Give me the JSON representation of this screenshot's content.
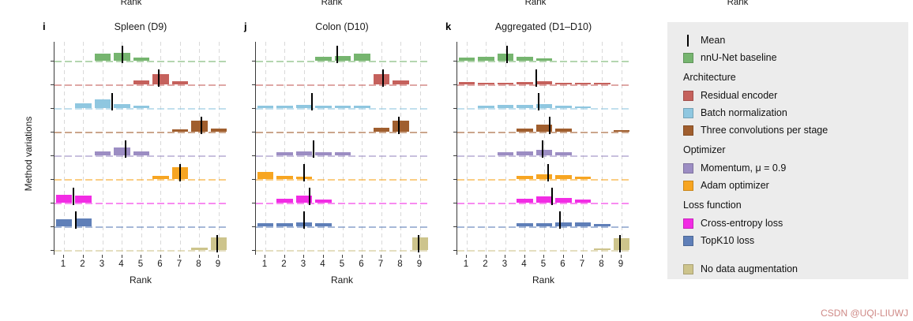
{
  "page": {
    "top_axis_labels": [
      "Rank",
      "Rank",
      "Rank",
      "Rank"
    ],
    "y_axis_label": "Method variations",
    "watermark": "CSDN @UQI-LIUWJ"
  },
  "colors": {
    "baseline": "#76b56f",
    "residual": "#c5615c",
    "batchnorm": "#8fc7e0",
    "threeconv": "#a05e2e",
    "momentum": "#9c8dc3",
    "adam": "#f7a521",
    "crossentropy": "#f22ce4",
    "topk10": "#5f7fb8",
    "noaug": "#cdc48c",
    "mean": "#000000",
    "grid": "#d9d9d9",
    "axis": "#3a3a3a",
    "legend_bg": "#ececec",
    "watermark": "#cf8a87"
  },
  "chart_data": [
    {
      "id": "i",
      "type": "rank-histogram",
      "title": "Spleen (D9)",
      "xlabel": "Rank",
      "x_ticks": [
        1,
        2,
        3,
        4,
        5,
        6,
        7,
        8,
        9
      ],
      "rows": [
        {
          "name": "nnU-Net baseline",
          "color_key": "baseline",
          "mean": 4.0,
          "bars": [
            [
              3,
              0.5
            ],
            [
              4,
              0.55
            ],
            [
              5,
              0.25
            ]
          ]
        },
        {
          "name": "Residual encoder",
          "color_key": "residual",
          "mean": 5.9,
          "bars": [
            [
              5,
              0.3
            ],
            [
              6,
              0.75
            ],
            [
              7,
              0.25
            ]
          ]
        },
        {
          "name": "Batch normalization",
          "color_key": "batchnorm",
          "mean": 3.5,
          "bars": [
            [
              2,
              0.35
            ],
            [
              3,
              0.6
            ],
            [
              4,
              0.3
            ],
            [
              5,
              0.15
            ]
          ]
        },
        {
          "name": "Three convolutions per stage",
          "color_key": "threeconv",
          "mean": 8.1,
          "bars": [
            [
              7,
              0.15
            ],
            [
              8,
              0.8
            ],
            [
              9,
              0.25
            ]
          ]
        },
        {
          "name": "Momentum, μ = 0.9",
          "color_key": "momentum",
          "mean": 4.2,
          "bars": [
            [
              3,
              0.3
            ],
            [
              4,
              0.55
            ],
            [
              5,
              0.3
            ]
          ]
        },
        {
          "name": "Adam optimizer",
          "color_key": "adam",
          "mean": 7.0,
          "bars": [
            [
              6,
              0.2
            ],
            [
              7,
              0.85
            ]
          ]
        },
        {
          "name": "Cross-entropy loss",
          "color_key": "crossentropy",
          "mean": 1.5,
          "bars": [
            [
              1,
              0.55
            ],
            [
              2,
              0.5
            ]
          ]
        },
        {
          "name": "TopK10 loss",
          "color_key": "topk10",
          "mean": 1.6,
          "bars": [
            [
              1,
              0.5
            ],
            [
              2,
              0.55
            ]
          ]
        },
        {
          "name": "No data augmentation",
          "color_key": "noaug",
          "mean": 8.9,
          "bars": [
            [
              8,
              0.15
            ],
            [
              9,
              0.9
            ]
          ]
        }
      ]
    },
    {
      "id": "j",
      "type": "rank-histogram",
      "title": "Colon (D10)",
      "xlabel": "Rank",
      "x_ticks": [
        1,
        2,
        3,
        4,
        5,
        6,
        7,
        8,
        9
      ],
      "rows": [
        {
          "name": "nnU-Net baseline",
          "color_key": "baseline",
          "mean": 4.7,
          "bars": [
            [
              4,
              0.3
            ],
            [
              5,
              0.35
            ],
            [
              6,
              0.5
            ]
          ]
        },
        {
          "name": "Residual encoder",
          "color_key": "residual",
          "mean": 7.1,
          "bars": [
            [
              7,
              0.7
            ],
            [
              8,
              0.3
            ]
          ]
        },
        {
          "name": "Batch normalization",
          "color_key": "batchnorm",
          "mean": 3.4,
          "bars": [
            [
              1,
              0.18
            ],
            [
              2,
              0.18
            ],
            [
              3,
              0.22
            ],
            [
              4,
              0.18
            ],
            [
              5,
              0.18
            ],
            [
              6,
              0.18
            ]
          ]
        },
        {
          "name": "Three convolutions per stage",
          "color_key": "threeconv",
          "mean": 7.9,
          "bars": [
            [
              7,
              0.3
            ],
            [
              8,
              0.8
            ]
          ]
        },
        {
          "name": "Momentum, μ = 0.9",
          "color_key": "momentum",
          "mean": 3.5,
          "bars": [
            [
              2,
              0.2
            ],
            [
              3,
              0.3
            ],
            [
              4,
              0.25
            ],
            [
              5,
              0.2
            ]
          ]
        },
        {
          "name": "Adam optimizer",
          "color_key": "adam",
          "mean": 3.0,
          "bars": [
            [
              1,
              0.5
            ],
            [
              2,
              0.25
            ],
            [
              3,
              0.15
            ]
          ]
        },
        {
          "name": "Cross-entropy loss",
          "color_key": "crossentropy",
          "mean": 3.3,
          "bars": [
            [
              2,
              0.3
            ],
            [
              3,
              0.5
            ],
            [
              4,
              0.25
            ]
          ]
        },
        {
          "name": "TopK10 loss",
          "color_key": "topk10",
          "mean": 3.0,
          "bars": [
            [
              1,
              0.2
            ],
            [
              2,
              0.25
            ],
            [
              3,
              0.3
            ],
            [
              4,
              0.22
            ]
          ]
        },
        {
          "name": "No data augmentation",
          "color_key": "noaug",
          "mean": 8.9,
          "bars": [
            [
              9,
              0.9
            ]
          ]
        }
      ]
    },
    {
      "id": "k",
      "type": "rank-histogram",
      "title": "Aggregated (D1–D10)",
      "xlabel": "Rank",
      "x_ticks": [
        1,
        2,
        3,
        4,
        5,
        6,
        7,
        8,
        9
      ],
      "rows": [
        {
          "name": "nnU-Net baseline",
          "color_key": "baseline",
          "mean": 3.1,
          "bars": [
            [
              1,
              0.2
            ],
            [
              2,
              0.3
            ],
            [
              3,
              0.5
            ],
            [
              4,
              0.3
            ],
            [
              5,
              0.15
            ]
          ]
        },
        {
          "name": "Residual encoder",
          "color_key": "residual",
          "mean": 4.6,
          "bars": [
            [
              1,
              0.15
            ],
            [
              2,
              0.12
            ],
            [
              3,
              0.12
            ],
            [
              4,
              0.18
            ],
            [
              5,
              0.2
            ],
            [
              6,
              0.12
            ],
            [
              7,
              0.12
            ],
            [
              8,
              0.1
            ]
          ]
        },
        {
          "name": "Batch normalization",
          "color_key": "batchnorm",
          "mean": 4.7,
          "bars": [
            [
              2,
              0.15
            ],
            [
              3,
              0.2
            ],
            [
              4,
              0.22
            ],
            [
              5,
              0.28
            ],
            [
              6,
              0.18
            ],
            [
              7,
              0.12
            ]
          ]
        },
        {
          "name": "Three convolutions per stage",
          "color_key": "threeconv",
          "mean": 5.3,
          "bars": [
            [
              4,
              0.2
            ],
            [
              5,
              0.5
            ],
            [
              6,
              0.2
            ],
            [
              9,
              0.12
            ]
          ]
        },
        {
          "name": "Momentum, μ = 0.9",
          "color_key": "momentum",
          "mean": 4.9,
          "bars": [
            [
              3,
              0.2
            ],
            [
              4,
              0.3
            ],
            [
              5,
              0.4
            ],
            [
              6,
              0.2
            ]
          ]
        },
        {
          "name": "Adam optimizer",
          "color_key": "adam",
          "mean": 5.2,
          "bars": [
            [
              4,
              0.2
            ],
            [
              5,
              0.35
            ],
            [
              6,
              0.3
            ],
            [
              7,
              0.15
            ]
          ]
        },
        {
          "name": "Cross-entropy loss",
          "color_key": "crossentropy",
          "mean": 5.4,
          "bars": [
            [
              4,
              0.3
            ],
            [
              5,
              0.45
            ],
            [
              6,
              0.35
            ],
            [
              7,
              0.2
            ]
          ]
        },
        {
          "name": "TopK10 loss",
          "color_key": "topk10",
          "mean": 5.8,
          "bars": [
            [
              4,
              0.2
            ],
            [
              5,
              0.25
            ],
            [
              6,
              0.3
            ],
            [
              7,
              0.28
            ],
            [
              8,
              0.18
            ]
          ]
        },
        {
          "name": "No data augmentation",
          "color_key": "noaug",
          "mean": 8.9,
          "bars": [
            [
              8,
              0.12
            ],
            [
              9,
              0.85
            ]
          ]
        }
      ]
    }
  ],
  "legend": {
    "items": [
      {
        "type": "mean",
        "label": "Mean"
      },
      {
        "type": "swatch",
        "color_key": "baseline",
        "label": "nnU-Net baseline"
      },
      {
        "type": "header",
        "label": "Architecture"
      },
      {
        "type": "swatch",
        "color_key": "residual",
        "label": "Residual encoder"
      },
      {
        "type": "swatch",
        "color_key": "batchnorm",
        "label": "Batch normalization"
      },
      {
        "type": "swatch",
        "color_key": "threeconv",
        "label": "Three convolutions per stage"
      },
      {
        "type": "header",
        "label": "Optimizer"
      },
      {
        "type": "swatch",
        "color_key": "momentum",
        "label": "Momentum, μ = 0.9"
      },
      {
        "type": "swatch",
        "color_key": "adam",
        "label": "Adam optimizer"
      },
      {
        "type": "header",
        "label": "Loss function"
      },
      {
        "type": "swatch",
        "color_key": "crossentropy",
        "label": "Cross-entropy loss"
      },
      {
        "type": "swatch",
        "color_key": "topk10",
        "label": "TopK10 loss"
      },
      {
        "type": "swatch",
        "color_key": "noaug",
        "label": "No data augmentation",
        "gap_before": true
      }
    ]
  }
}
